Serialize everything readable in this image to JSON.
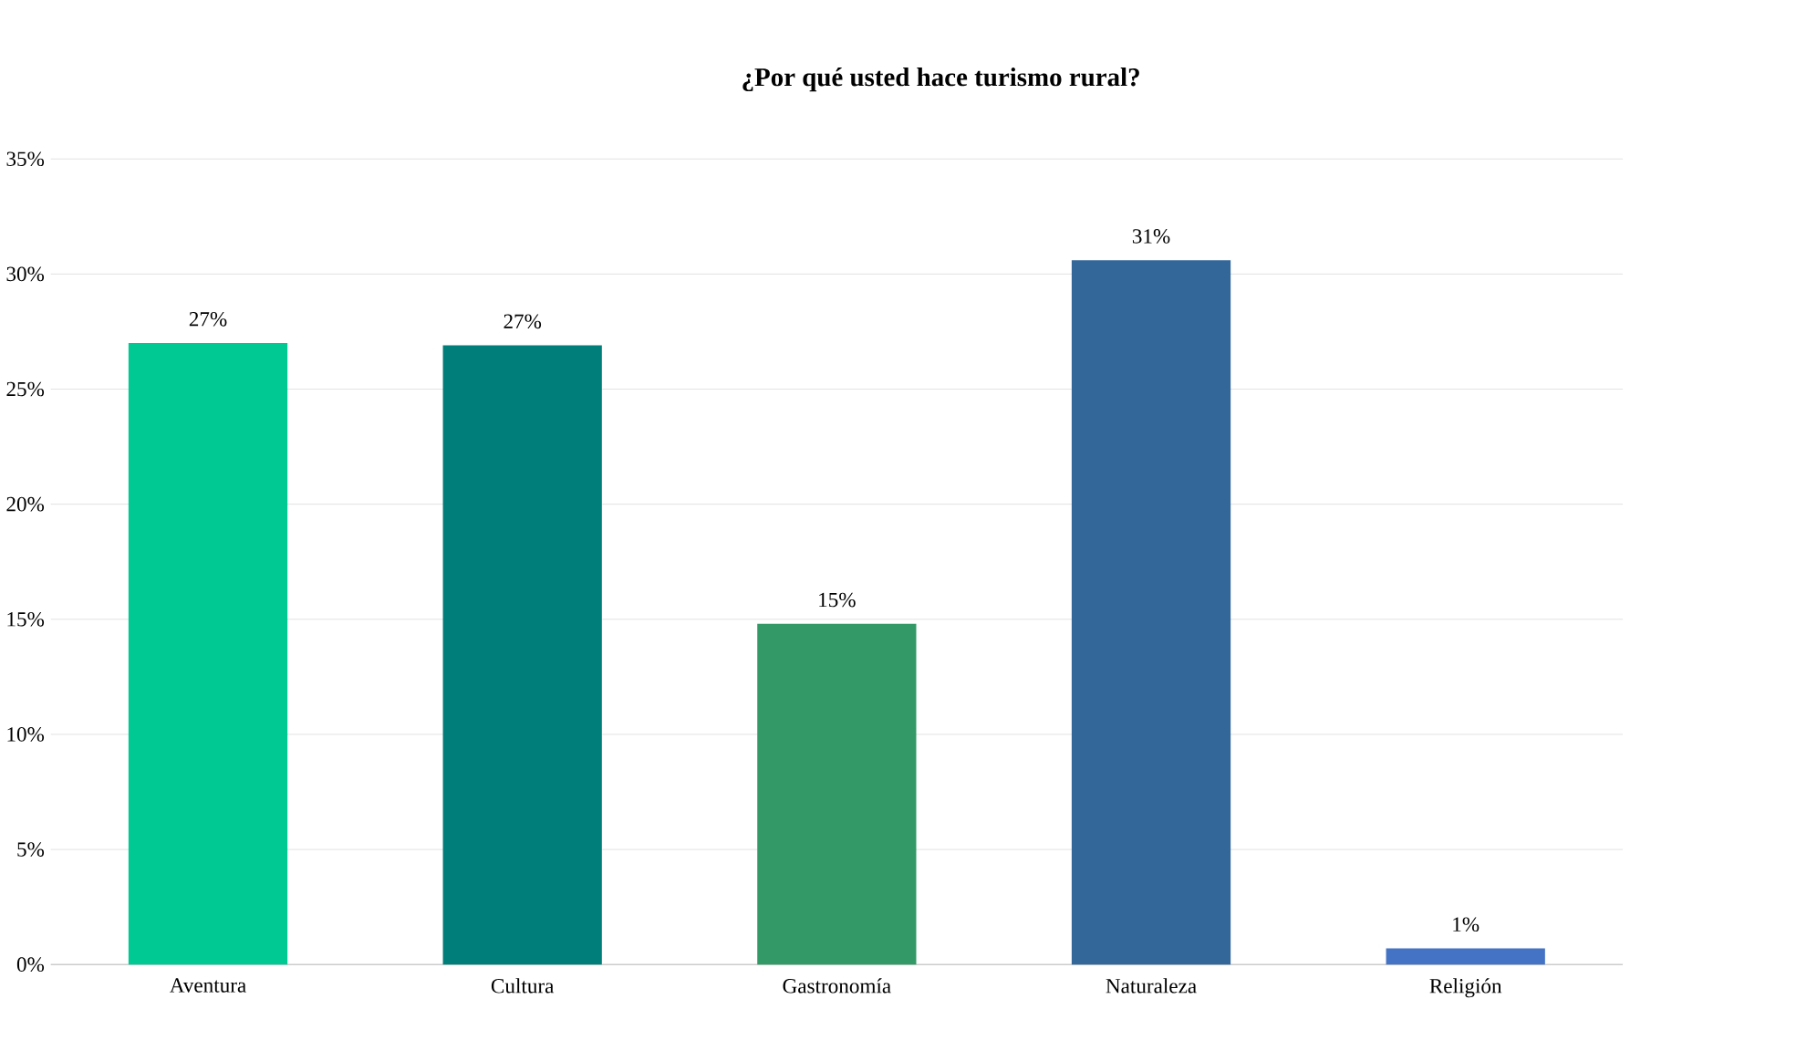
{
  "chart_data": {
    "type": "bar",
    "title": "¿Por qué usted hace turismo rural?",
    "categories": [
      "Aventura",
      "Cultura",
      "Gastronomía",
      "Naturaleza",
      "Religión"
    ],
    "values": [
      27.0,
      26.9,
      14.8,
      30.6,
      0.7
    ],
    "value_labels": [
      "27%",
      "27%",
      "15%",
      "31%",
      "1%"
    ],
    "colors": [
      "#00c994",
      "#007f7a",
      "#339966",
      "#336699",
      "#4472c4"
    ],
    "ylim": [
      0,
      35
    ],
    "yticks": [
      {
        "value": 0,
        "label": "0%"
      },
      {
        "value": 5,
        "label": "5%"
      },
      {
        "value": 10,
        "label": "10%"
      },
      {
        "value": 15,
        "label": "15%"
      },
      {
        "value": 20,
        "label": "20%"
      },
      {
        "value": 25,
        "label": "25%"
      },
      {
        "value": 30,
        "label": "30%"
      },
      {
        "value": 35,
        "label": "35%"
      }
    ],
    "grid": "y"
  }
}
